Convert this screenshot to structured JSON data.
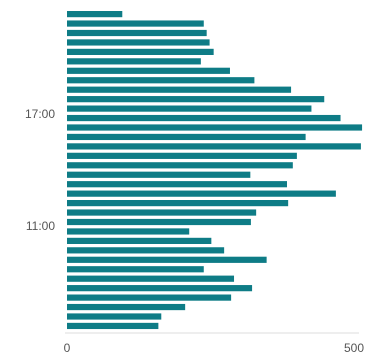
{
  "chart_data": {
    "type": "bar",
    "orientation": "horizontal",
    "title": "",
    "xlabel": "",
    "ylabel": "",
    "xlim": [
      0,
      500
    ],
    "x_tick_labels": [
      "0",
      "500"
    ],
    "y_tick_labels": [
      "17:00",
      "11:00"
    ],
    "grid": false,
    "legend": "none",
    "bar_color": "#0e7c86",
    "values": [
      95,
      235,
      240,
      245,
      252,
      230,
      280,
      322,
      385,
      442,
      420,
      470,
      507,
      410,
      505,
      395,
      388,
      315,
      378,
      462,
      380,
      325,
      316,
      210,
      248,
      270,
      343,
      235,
      287,
      318,
      282,
      203,
      162,
      157
    ]
  }
}
